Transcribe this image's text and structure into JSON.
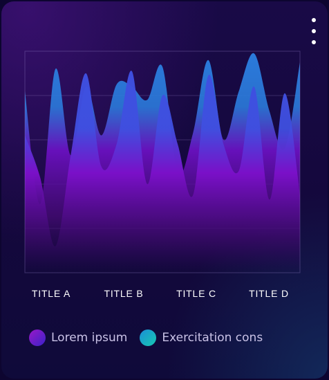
{
  "chart_data": {
    "type": "area",
    "categories": [
      "TITLE A",
      "TITLE B",
      "TITLE C",
      "TITLE D"
    ],
    "grid": true,
    "legend_position": "bottom",
    "series": [
      {
        "name": "Lorem ipsum",
        "color_top": "#3f4fe0",
        "color_mid": "#7a10c8",
        "color_bottom": "#2a0a5a",
        "peaks": [
          0.62,
          0.43,
          0.12,
          0.53,
          0.9,
          0.48,
          0.58,
          0.91,
          0.4,
          0.8,
          0.58,
          0.35,
          0.89,
          0.58,
          0.46,
          0.84,
          0.33,
          0.81,
          0.35
        ]
      },
      {
        "name": "Exercitation cons",
        "color_top": "#2b7bdc",
        "color_mid": "#6a10c0",
        "color_bottom": "#20084a",
        "peaks": [
          0.82,
          0.31,
          0.92,
          0.53,
          0.84,
          0.62,
          0.85,
          0.84,
          0.78,
          0.93,
          0.45,
          0.63,
          0.96,
          0.6,
          0.82,
          0.99,
          0.73,
          0.56,
          0.95
        ]
      }
    ]
  },
  "legend": {
    "items": [
      {
        "label": "Lorem ipsum",
        "color_from": "#9a18c8",
        "color_to": "#3a22c8"
      },
      {
        "label": "Exercitation cons",
        "color_from": "#1a8fd8",
        "color_to": "#18c8b0"
      }
    ]
  }
}
